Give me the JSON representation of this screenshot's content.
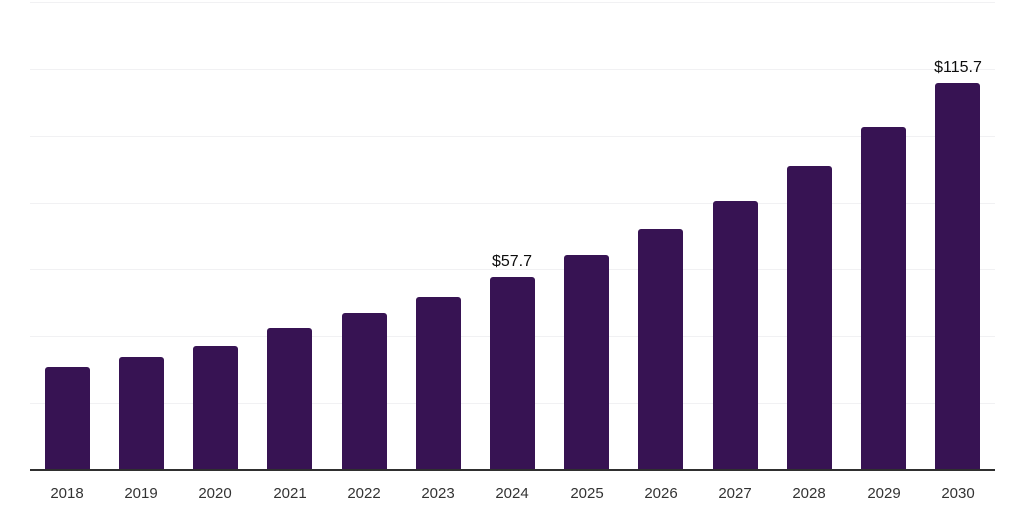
{
  "chart_data": {
    "type": "bar",
    "title": "",
    "xlabel": "",
    "ylabel": "",
    "categories": [
      "2018",
      "2019",
      "2020",
      "2021",
      "2022",
      "2023",
      "2024",
      "2025",
      "2026",
      "2027",
      "2028",
      "2029",
      "2030"
    ],
    "values": [
      30.7,
      33.7,
      37.2,
      42.5,
      47.0,
      51.9,
      57.7,
      64.3,
      72.0,
      80.6,
      90.9,
      102.7,
      115.7
    ],
    "value_labels": [
      {
        "category": "2024",
        "text": "$57.7"
      },
      {
        "category": "2030",
        "text": "$115.7"
      }
    ],
    "ylim": [
      0,
      140
    ],
    "gridline_step": 20,
    "grid": "horizontal-only",
    "y_tick_labels_visible": false,
    "legend": "none",
    "colors": {
      "bar": "#371353",
      "gridline": "#f1f1f3",
      "axis_line": "#2f2f2f",
      "tick_label": "#333333",
      "value_label": "#0d0d0d",
      "background": "#ffffff"
    }
  }
}
